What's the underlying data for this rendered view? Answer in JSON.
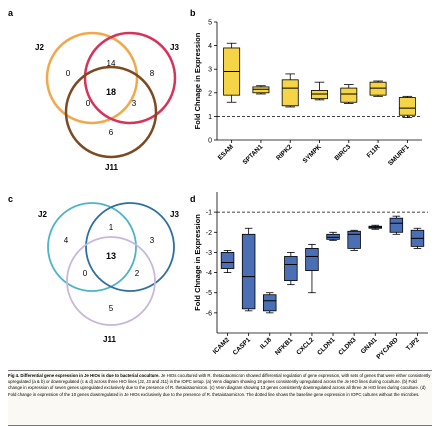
{
  "panels": {
    "a": {
      "letter": "a",
      "sets": [
        "J2",
        "J3",
        "J11"
      ],
      "regions": {
        "only_j2": "0",
        "j2_j3": "14",
        "only_j3": "8",
        "center": "18",
        "j2_j11": "0",
        "j3_j11": "3",
        "only_j11": "6"
      },
      "colors": {
        "J2": "#f2a84a",
        "J3": "#d6335a",
        "J11": "#7a4a23"
      }
    },
    "b": {
      "letter": "b",
      "chart_data": {
        "type": "box",
        "ylabel": "Fold Chnage in Expression",
        "ylim": [
          0,
          5
        ],
        "yticks": [
          0,
          1,
          2,
          3,
          4,
          5
        ],
        "reference_line": 1,
        "color": "#f5d547",
        "categories": [
          "ESAM",
          "SPTAN1",
          "RIPK2",
          "SYMPK",
          "BIRC3",
          "F11R",
          "SMURF1"
        ],
        "boxes": [
          {
            "min": 1.6,
            "q1": 1.9,
            "median": 2.9,
            "q3": 3.9,
            "max": 4.1
          },
          {
            "min": 1.95,
            "q1": 2.0,
            "median": 2.15,
            "q3": 2.25,
            "max": 2.3
          },
          {
            "min": 1.4,
            "q1": 1.45,
            "median": 2.2,
            "q3": 2.55,
            "max": 2.8
          },
          {
            "min": 1.7,
            "q1": 1.75,
            "median": 1.95,
            "q3": 2.1,
            "max": 2.45
          },
          {
            "min": 1.55,
            "q1": 1.6,
            "median": 1.95,
            "q3": 2.2,
            "max": 2.35
          },
          {
            "min": 1.85,
            "q1": 1.9,
            "median": 2.2,
            "q3": 2.45,
            "max": 2.5
          },
          {
            "min": 0.95,
            "q1": 1.05,
            "median": 1.35,
            "q3": 1.8,
            "max": 1.85
          }
        ]
      }
    },
    "c": {
      "letter": "c",
      "sets": [
        "J2",
        "J3",
        "J11"
      ],
      "regions": {
        "only_j2": "4",
        "j2_j3": "1",
        "only_j3": "3",
        "center": "13",
        "j2_j11": "0",
        "j3_j11": "2",
        "only_j11": "5"
      },
      "colors": {
        "J2": "#4db3c8",
        "J3": "#2d6f9e",
        "J11": "#c7b7db"
      }
    },
    "d": {
      "letter": "d",
      "chart_data": {
        "type": "box",
        "ylabel": "Fold Chnage in Expression",
        "ylim": [
          -7,
          0
        ],
        "yticks": [
          -6,
          -5,
          -4,
          -3,
          -2,
          -1
        ],
        "reference_line": -1,
        "color": "#4a6fb5",
        "categories": [
          "ICAM2",
          "CASP1",
          "IL18",
          "NFKB1",
          "CXCL2",
          "CLDN1",
          "CLDN3",
          "GNAI1",
          "PYCARD",
          "TJP2"
        ],
        "boxes": [
          {
            "min": -4.0,
            "q1": -3.8,
            "median": -3.5,
            "q3": -3.0,
            "max": -2.9
          },
          {
            "min": -5.9,
            "q1": -5.8,
            "median": -4.2,
            "q3": -2.1,
            "max": -1.8
          },
          {
            "min": -6.0,
            "q1": -5.9,
            "median": -5.4,
            "q3": -5.1,
            "max": -5.0
          },
          {
            "min": -4.6,
            "q1": -4.4,
            "median": -3.6,
            "q3": -3.2,
            "max": -3.0
          },
          {
            "min": -5.0,
            "q1": -3.9,
            "median": -3.2,
            "q3": -2.8,
            "max": -2.6
          },
          {
            "min": -2.4,
            "q1": -2.35,
            "median": -2.25,
            "q3": -2.1,
            "max": -2.0
          },
          {
            "min": -2.9,
            "q1": -2.8,
            "median": -2.1,
            "q3": -1.95,
            "max": -1.9
          },
          {
            "min": -1.85,
            "q1": -1.8,
            "median": -1.75,
            "q3": -1.7,
            "max": -1.65
          },
          {
            "min": -2.1,
            "q1": -2.0,
            "median": -1.55,
            "q3": -1.3,
            "max": -1.2
          },
          {
            "min": -2.8,
            "q1": -2.7,
            "median": -2.3,
            "q3": -1.9,
            "max": -1.8
          }
        ]
      }
    }
  },
  "caption": {
    "lead": "Fig 4. Differential gene expression in Je HIOs is due to bacterial coculture.",
    "body": " Je HIOs cocultured with R. thetaiotaomicron showed differential regulation of gene expression, with sets of genes that were either consistently upregulated (a & b) or downregulated (c & d) across three HIO lines (J2, J3 and J11) in the IOPC setup. (a) Venn diagram showing 18 genes consistently upregulated across the Je HIO lines during coculture. (b) Fold change in expression of seven genes upregulated exclusively due to the presence of R. thetaiotaomicron. (c) Venn diagram showing 13 genes consistently downregulated across all three Je HIO lines during coculture. (d) Fold change in expression of the 10 genes downregulated in Je HIOs exclusively due to the presence of R. thetaiotaomicron. The dotted line shows the baseline gene expression in IOPC cultures without the microbes."
  }
}
